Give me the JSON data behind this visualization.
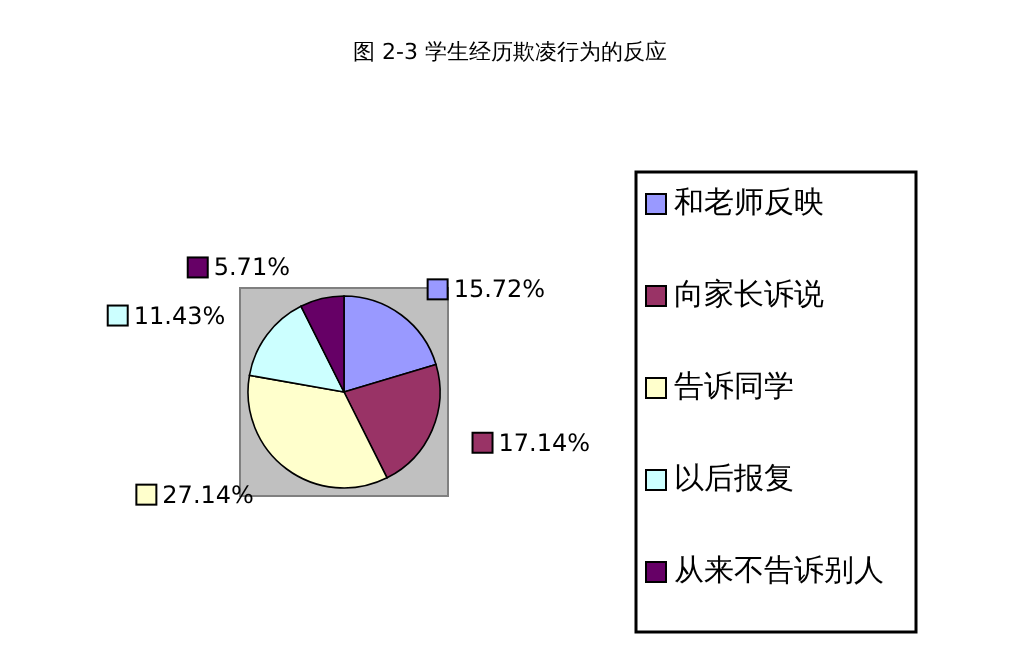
{
  "chart_data": {
    "type": "pie",
    "title": "图 2-3 学生经历欺凌行为的反应",
    "categories": [
      "和老师反映",
      "向家长诉说",
      "告诉同学",
      "以后报复",
      "从来不告诉别人"
    ],
    "values": [
      15.72,
      17.14,
      27.14,
      11.43,
      5.71
    ],
    "value_labels": [
      "15.72%",
      "17.14%",
      "27.14%",
      "11.43%",
      "5.71%"
    ],
    "colors": [
      "#9999ff",
      "#993366",
      "#ffffcc",
      "#ccffff",
      "#660066"
    ],
    "legend": "right"
  }
}
